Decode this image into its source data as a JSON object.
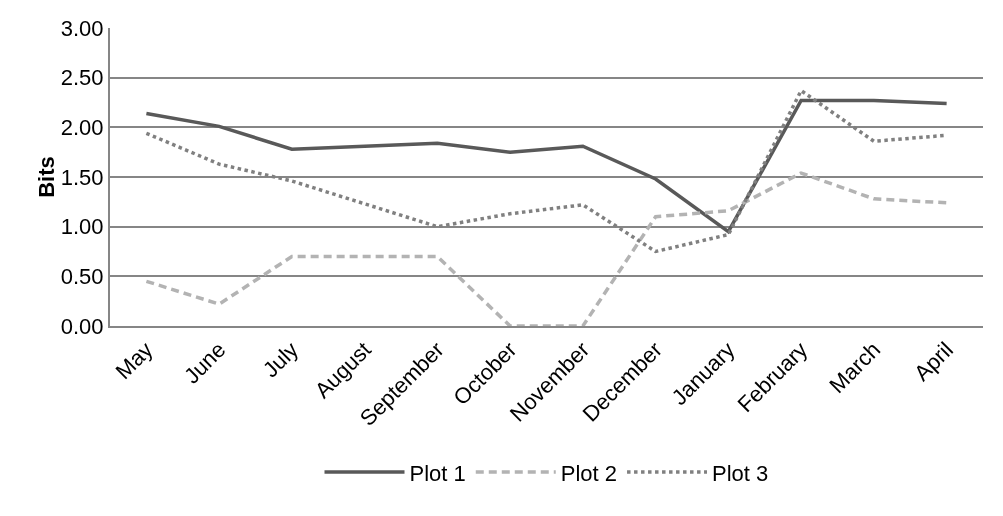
{
  "chart_data": {
    "type": "line",
    "ylabel": "Bits",
    "categories": [
      "May",
      "June",
      "July",
      "August",
      "September",
      "October",
      "November",
      "December",
      "January",
      "February",
      "March",
      "April"
    ],
    "ylim": [
      0,
      3
    ],
    "yticks": [
      {
        "value": 0,
        "label": "0.00"
      },
      {
        "value": 0.5,
        "label": "0.50"
      },
      {
        "value": 1,
        "label": "1.00"
      },
      {
        "value": 1.5,
        "label": "1.50"
      },
      {
        "value": 2,
        "label": "2.00"
      },
      {
        "value": 2.5,
        "label": "2.50"
      },
      {
        "value": 3,
        "label": "3.00"
      }
    ],
    "series": [
      {
        "name": "Plot 1",
        "color": "#595959",
        "line_style": "solid",
        "values": [
          2.14,
          2.01,
          1.78,
          1.81,
          1.84,
          1.75,
          1.81,
          1.48,
          0.95,
          2.27,
          2.27,
          2.24
        ]
      },
      {
        "name": "Plot 2",
        "color": "#b3b3b3",
        "line_style": "dashed",
        "values": [
          0.45,
          0.22,
          0.7,
          0.7,
          0.7,
          0.0,
          0.0,
          1.1,
          1.16,
          1.54,
          1.28,
          1.24
        ]
      },
      {
        "name": "Plot 3",
        "color": "#808080",
        "line_style": "dotted",
        "values": [
          1.94,
          1.63,
          1.46,
          1.23,
          1.0,
          1.13,
          1.22,
          0.75,
          0.92,
          2.37,
          1.86,
          1.92
        ]
      }
    ],
    "grid": "y",
    "legend": "bottom",
    "marker": "none"
  }
}
